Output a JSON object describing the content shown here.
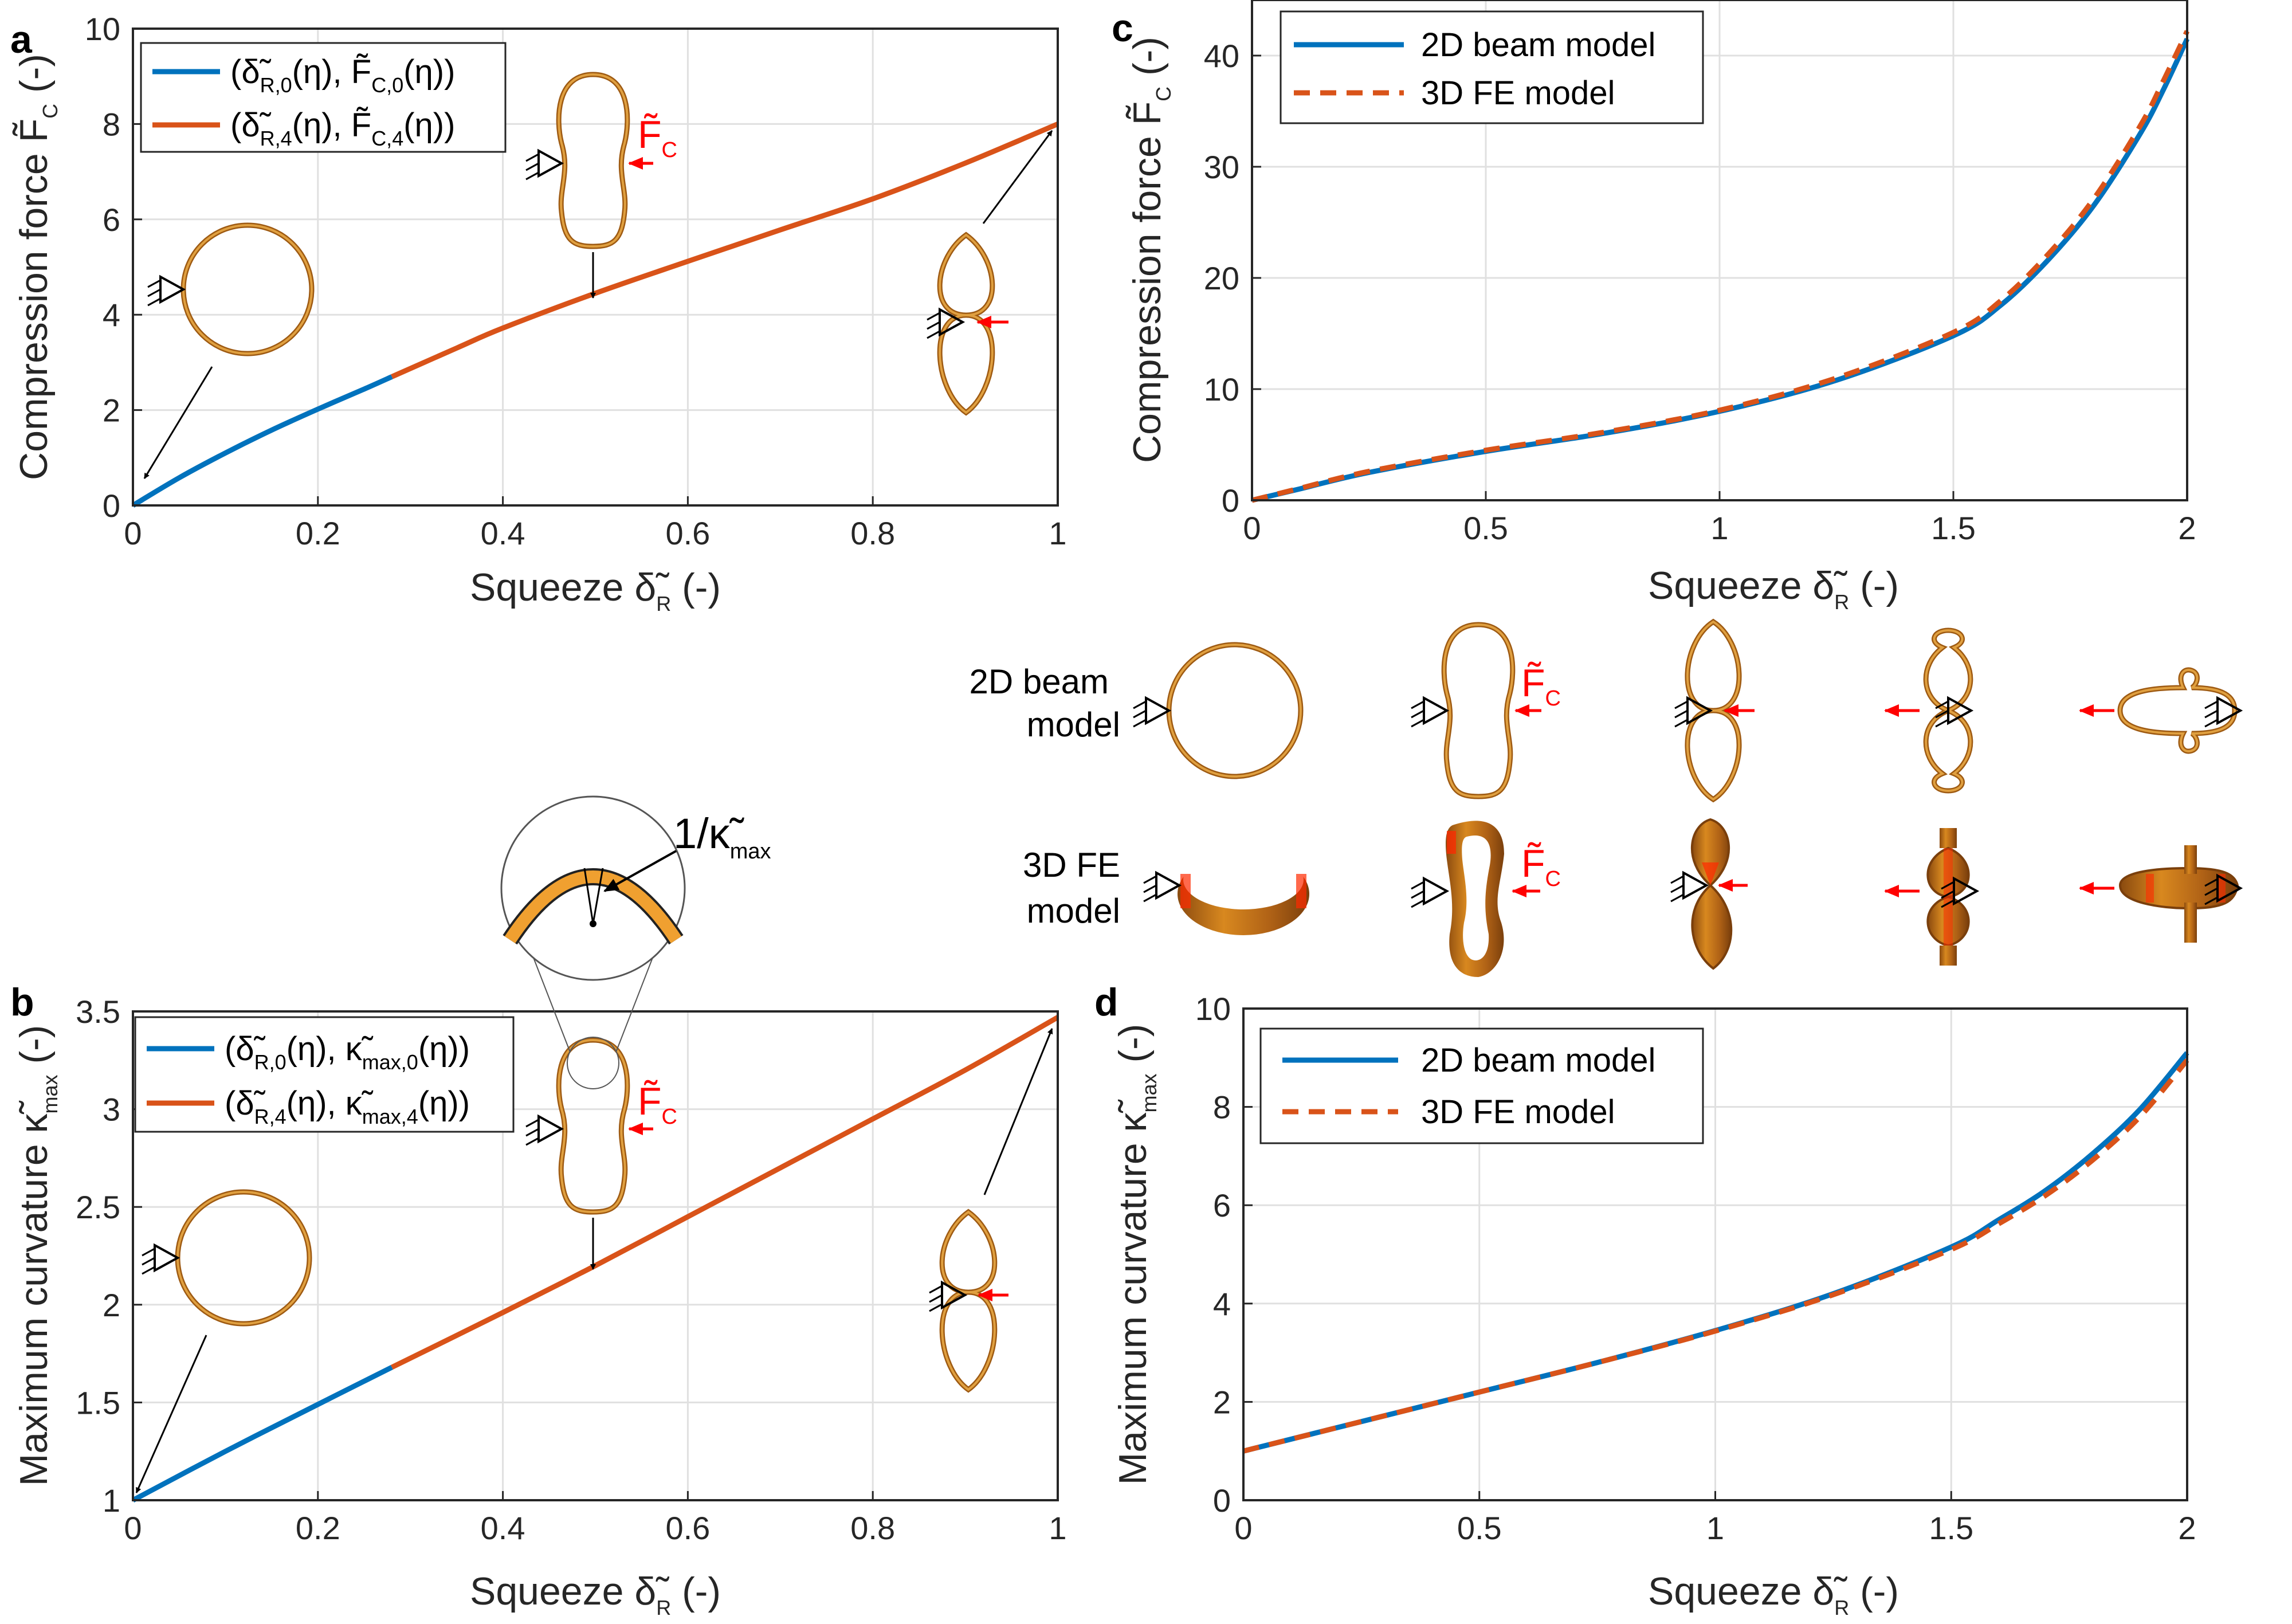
{
  "colors": {
    "blue": "#0072BD",
    "orange": "#D95319",
    "ring": "#D4902E",
    "ring_dark": "#9E5A12",
    "red": "#ff0000"
  },
  "chart_data": [
    {
      "id": "a",
      "panel_label": "a",
      "type": "line",
      "xlabel_main": "Squeeze ",
      "xlabel_sym": "δ̃",
      "xlabel_sub": "R",
      "xlabel_tail": " (-)",
      "ylabel_main": "Compression force ",
      "ylabel_sym": "F̃",
      "ylabel_sub": "C",
      "ylabel_tail": " (-)",
      "xlim": [
        0,
        1
      ],
      "ylim": [
        0,
        10
      ],
      "xticks": [
        0,
        0.2,
        0.4,
        0.6,
        0.8,
        1
      ],
      "xtick_labels": [
        "0",
        "0.2",
        "0.4",
        "0.6",
        "0.8",
        "1"
      ],
      "yticks": [
        0,
        2,
        4,
        6,
        8,
        10
      ],
      "ytick_labels": [
        "0",
        "2",
        "4",
        "6",
        "8",
        "10"
      ],
      "legend": [
        {
          "pre": "(δ̃",
          "sub1": "R,0",
          "mid": "(η), F̃",
          "sub2": "C,0",
          "post": "(η))"
        },
        {
          "pre": "(δ̃",
          "sub1": "R,4",
          "mid": "(η), F̃",
          "sub2": "C,4",
          "post": "(η))"
        }
      ],
      "series": [
        {
          "name": "(δR,0(η), FC,0(η))",
          "color": "#0072BD",
          "x": [
            0,
            0.05,
            0.1,
            0.15,
            0.2,
            0.25,
            0.28
          ],
          "y": [
            0,
            0.58,
            1.1,
            1.58,
            2.02,
            2.44,
            2.7
          ]
        },
        {
          "name": "(δR,4(η), FC,4(η))",
          "color": "#D95319",
          "x": [
            0.28,
            0.35,
            0.4,
            0.5,
            0.6,
            0.7,
            0.8,
            0.9,
            1.0
          ],
          "y": [
            2.7,
            3.3,
            3.72,
            4.45,
            5.12,
            5.78,
            6.43,
            7.18,
            8.0
          ]
        }
      ],
      "annotation": {
        "text": "F̃",
        "sub": "C"
      }
    },
    {
      "id": "b",
      "panel_label": "b",
      "type": "line",
      "xlabel_main": "Squeeze ",
      "xlabel_sym": "δ̃",
      "xlabel_sub": "R",
      "xlabel_tail": " (-)",
      "ylabel_main": "Maximum curvature ",
      "ylabel_sym": "κ̃",
      "ylabel_sub": "max",
      "ylabel_tail": " (-)",
      "xlim": [
        0,
        1
      ],
      "ylim": [
        1,
        3.5
      ],
      "xticks": [
        0,
        0.2,
        0.4,
        0.6,
        0.8,
        1
      ],
      "xtick_labels": [
        "0",
        "0.2",
        "0.4",
        "0.6",
        "0.8",
        "1"
      ],
      "yticks": [
        1,
        1.5,
        2,
        2.5,
        3,
        3.5
      ],
      "ytick_labels": [
        "1",
        "1.5",
        "2",
        "2.5",
        "3",
        "3.5"
      ],
      "legend": [
        {
          "pre": "(δ̃",
          "sub1": "R,0",
          "mid": "(η), κ̃",
          "sub2": "max,0",
          "post": "(η))"
        },
        {
          "pre": "(δ̃",
          "sub1": "R,4",
          "mid": "(η), κ̃",
          "sub2": "max,4",
          "post": "(η))"
        }
      ],
      "series": [
        {
          "name": "(δR,0(η), κmax,0(η))",
          "color": "#0072BD",
          "x": [
            0,
            0.1,
            0.2,
            0.28
          ],
          "y": [
            1.0,
            1.25,
            1.49,
            1.68
          ]
        },
        {
          "name": "(δR,4(η), κmax,4(η))",
          "color": "#D95319",
          "x": [
            0.28,
            0.4,
            0.5,
            0.6,
            0.7,
            0.8,
            0.9,
            1.0
          ],
          "y": [
            1.68,
            1.96,
            2.2,
            2.45,
            2.7,
            2.95,
            3.2,
            3.47
          ]
        }
      ],
      "annotation": {
        "text": "F̃",
        "sub": "C",
        "radius_text": "1/κ̃",
        "radius_sub": "max"
      }
    },
    {
      "id": "c",
      "panel_label": "c",
      "type": "line",
      "xlabel_main": "Squeeze ",
      "xlabel_sym": "δ̃",
      "xlabel_sub": "R",
      "xlabel_tail": " (-)",
      "ylabel_main": "Compression force ",
      "ylabel_sym": "F̃",
      "ylabel_sub": "C",
      "ylabel_tail": " (-)",
      "xlim": [
        0,
        2
      ],
      "ylim": [
        0,
        45
      ],
      "xticks": [
        0,
        0.5,
        1,
        1.5,
        2
      ],
      "xtick_labels": [
        "0",
        "0.5",
        "1",
        "1.5",
        "2"
      ],
      "yticks": [
        0,
        10,
        20,
        30,
        40
      ],
      "ytick_labels": [
        "0",
        "10",
        "20",
        "30",
        "40"
      ],
      "legend": [
        {
          "label": "2D beam model"
        },
        {
          "label": "3D FE model"
        }
      ],
      "series": [
        {
          "name": "2D beam model",
          "color": "#0072BD",
          "style": "solid",
          "x": [
            0,
            0.1,
            0.25,
            0.5,
            0.75,
            1.0,
            1.25,
            1.5,
            1.6,
            1.7,
            1.8,
            1.9,
            1.95,
            2.0
          ],
          "y": [
            0,
            1.0,
            2.5,
            4.4,
            6.0,
            8.0,
            10.8,
            14.8,
            17.5,
            21.5,
            26.5,
            33,
            37,
            41.5
          ]
        },
        {
          "name": "3D FE model",
          "color": "#D95319",
          "style": "dashed",
          "x": [
            0,
            0.1,
            0.25,
            0.5,
            0.75,
            1.0,
            1.25,
            1.5,
            1.6,
            1.7,
            1.8,
            1.9,
            1.95,
            2.0
          ],
          "y": [
            0,
            1.05,
            2.6,
            4.5,
            6.1,
            8.1,
            11.0,
            15.1,
            17.9,
            22.0,
            27.1,
            33.7,
            37.8,
            42.2
          ]
        }
      ]
    },
    {
      "id": "d",
      "panel_label": "d",
      "type": "line",
      "xlabel_main": "Squeeze ",
      "xlabel_sym": "δ̃",
      "xlabel_sub": "R",
      "xlabel_tail": " (-)",
      "ylabel_main": "Maximum curvature ",
      "ylabel_sym": "κ̃",
      "ylabel_sub": "max",
      "ylabel_tail": " (-)",
      "xlim": [
        0,
        2
      ],
      "ylim": [
        0,
        10
      ],
      "xticks": [
        0,
        0.5,
        1,
        1.5,
        2
      ],
      "xtick_labels": [
        "0",
        "0.5",
        "1",
        "1.5",
        "2"
      ],
      "yticks": [
        0,
        2,
        4,
        6,
        8,
        10
      ],
      "ytick_labels": [
        "0",
        "2",
        "4",
        "6",
        "8",
        "10"
      ],
      "legend": [
        {
          "label": "2D beam model"
        },
        {
          "label": "3D FE model"
        }
      ],
      "series": [
        {
          "name": "2D beam model",
          "color": "#0072BD",
          "style": "solid",
          "x": [
            0,
            0.25,
            0.5,
            0.75,
            1.0,
            1.25,
            1.5,
            1.6,
            1.7,
            1.8,
            1.9,
            2.0
          ],
          "y": [
            1.0,
            1.6,
            2.2,
            2.8,
            3.45,
            4.2,
            5.15,
            5.7,
            6.3,
            7.05,
            7.95,
            9.1
          ]
        },
        {
          "name": "3D FE model",
          "color": "#D95319",
          "style": "dashed",
          "x": [
            0,
            0.25,
            0.5,
            0.75,
            1.0,
            1.25,
            1.5,
            1.6,
            1.7,
            1.8,
            1.9,
            2.0
          ],
          "y": [
            1.0,
            1.6,
            2.2,
            2.8,
            3.44,
            4.18,
            5.1,
            5.62,
            6.2,
            6.92,
            7.8,
            8.95
          ]
        }
      ]
    }
  ],
  "shapes_panel": {
    "row1_line1": "2D beam",
    "row1_line2": "model",
    "row2_line1": "3D FE",
    "row2_line2": "model",
    "force_text": "F̃",
    "force_sub": "C"
  }
}
